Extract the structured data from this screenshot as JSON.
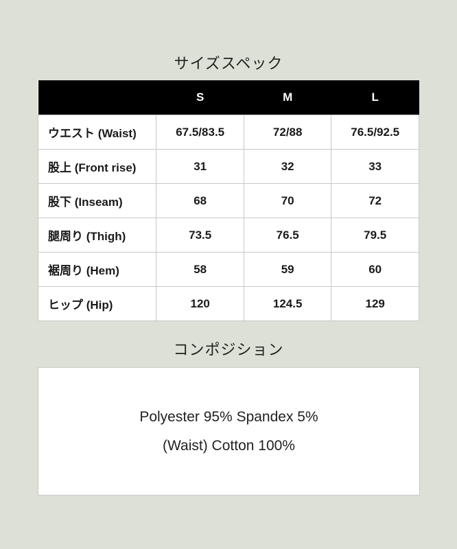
{
  "size_spec": {
    "title": "サイズスペック",
    "headers": [
      "",
      "S",
      "M",
      "L"
    ],
    "rows": [
      {
        "label": "ウエスト (Waist)",
        "values": [
          "67.5/83.5",
          "72/88",
          "76.5/92.5"
        ]
      },
      {
        "label": "股上 (Front rise)",
        "values": [
          "31",
          "32",
          "33"
        ]
      },
      {
        "label": "股下 (Inseam)",
        "values": [
          "68",
          "70",
          "72"
        ]
      },
      {
        "label": "腿周り (Thigh)",
        "values": [
          "73.5",
          "76.5",
          "79.5"
        ]
      },
      {
        "label": "裾周り (Hem)",
        "values": [
          "58",
          "59",
          "60"
        ]
      },
      {
        "label": "ヒップ (Hip)",
        "values": [
          "120",
          "124.5",
          "129"
        ]
      }
    ]
  },
  "composition": {
    "title": "コンポジション",
    "lines": [
      "Polyester 95% Spandex 5%",
      "(Waist) Cotton 100%"
    ]
  }
}
